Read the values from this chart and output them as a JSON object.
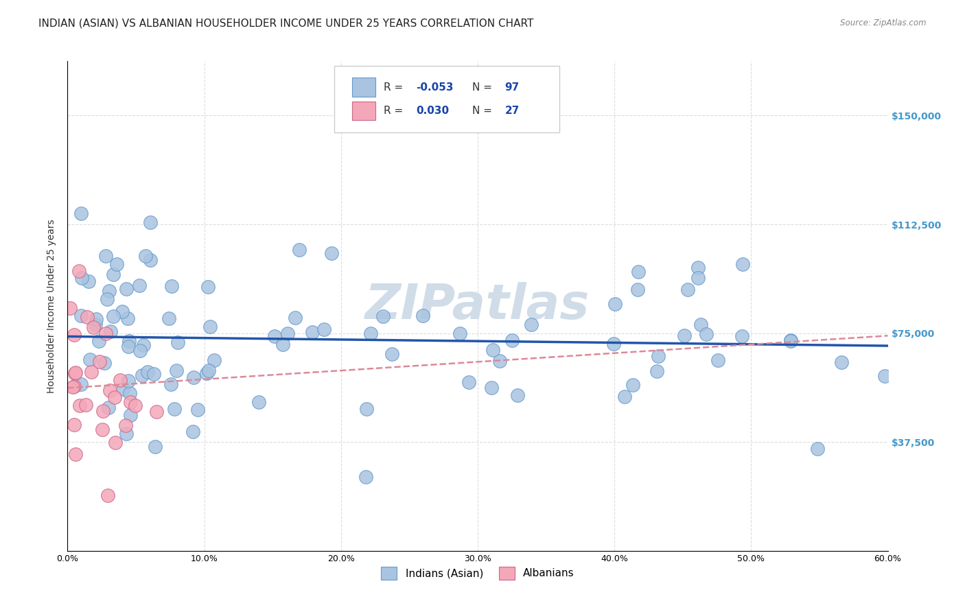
{
  "title": "INDIAN (ASIAN) VS ALBANIAN HOUSEHOLDER INCOME UNDER 25 YEARS CORRELATION CHART",
  "source": "Source: ZipAtlas.com",
  "xlabel": "",
  "ylabel": "Householder Income Under 25 years",
  "xlim": [
    0.0,
    0.6
  ],
  "ylim": [
    0,
    168750
  ],
  "xtick_labels": [
    "0.0%",
    "10.0%",
    "20.0%",
    "30.0%",
    "40.0%",
    "50.0%",
    "60.0%"
  ],
  "xtick_values": [
    0.0,
    0.1,
    0.2,
    0.3,
    0.4,
    0.5,
    0.6
  ],
  "ytick_labels": [
    "$37,500",
    "$75,000",
    "$112,500",
    "$150,000"
  ],
  "ytick_values": [
    37500,
    75000,
    112500,
    150000
  ],
  "legend_entries": [
    "Indians (Asian)",
    "Albanians"
  ],
  "r_indian": -0.053,
  "n_indian": 97,
  "r_albanian": 0.03,
  "n_albanian": 27,
  "background_color": "#ffffff",
  "grid_color": "#dddddd",
  "blue_color": "#a8c4e0",
  "blue_edge": "#6699cc",
  "pink_color": "#f4a7b9",
  "pink_edge": "#cc6688",
  "trend_blue": "#2255aa",
  "trend_pink": "#dd8899",
  "watermark_color": "#d0dde8",
  "title_fontsize": 11,
  "axis_label_fontsize": 10,
  "tick_label_fontsize": 9,
  "right_tick_color": "#4499cc"
}
